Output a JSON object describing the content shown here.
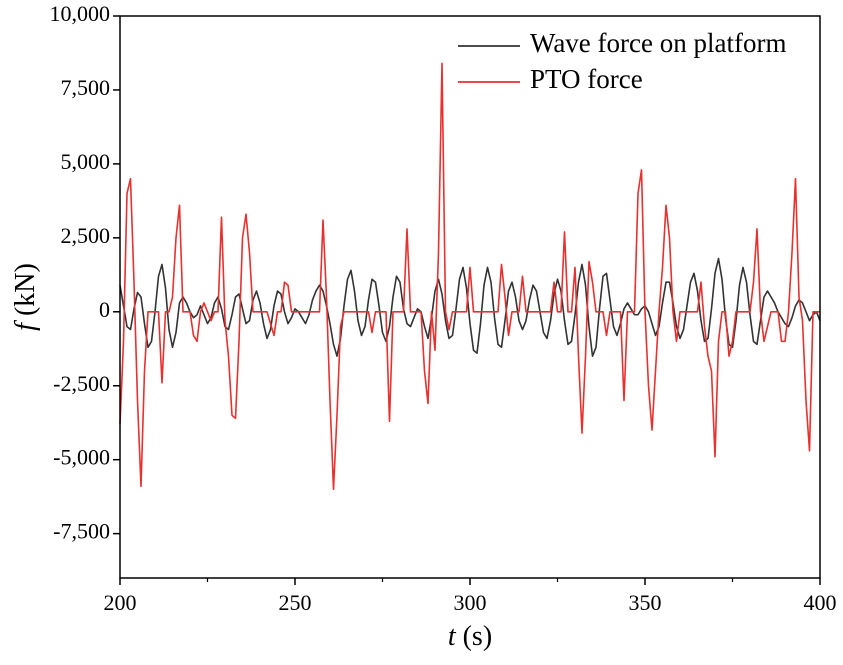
{
  "chart_data": {
    "type": "line",
    "xlabel_var": "t",
    "xlabel_unit": "(s)",
    "ylabel_var": "f",
    "ylabel_unit": "(kN)",
    "xlim": [
      200,
      400
    ],
    "xticks": [
      200,
      250,
      300,
      350,
      400
    ],
    "xminorticks": [
      225,
      275,
      325,
      375
    ],
    "ylim": [
      -9000,
      10000
    ],
    "yticks": [
      {
        "value": -7500,
        "label": "-7,500"
      },
      {
        "value": -5000,
        "label": "-5,000"
      },
      {
        "value": -2500,
        "label": "-2,500"
      },
      0,
      {
        "value": 2500,
        "label": "2,500"
      },
      {
        "value": 5000,
        "label": "5,000"
      },
      {
        "value": 7500,
        "label": "7,500"
      },
      {
        "value": 10000,
        "label": "10,000"
      }
    ],
    "grid": false,
    "legend": "upper right",
    "x": [
      200,
      201,
      202,
      203,
      204,
      205,
      206,
      207,
      208,
      209,
      210,
      211,
      212,
      213,
      214,
      215,
      216,
      217,
      218,
      219,
      220,
      221,
      222,
      223,
      224,
      225,
      226,
      227,
      228,
      229,
      230,
      231,
      232,
      233,
      234,
      235,
      236,
      237,
      238,
      239,
      240,
      241,
      242,
      243,
      244,
      245,
      246,
      247,
      248,
      249,
      250,
      251,
      252,
      253,
      254,
      255,
      256,
      257,
      258,
      259,
      260,
      261,
      262,
      263,
      264,
      265,
      266,
      267,
      268,
      269,
      270,
      271,
      272,
      273,
      274,
      275,
      276,
      277,
      278,
      279,
      280,
      281,
      282,
      283,
      284,
      285,
      286,
      287,
      288,
      289,
      290,
      291,
      292,
      293,
      294,
      295,
      296,
      297,
      298,
      299,
      300,
      301,
      302,
      303,
      304,
      305,
      306,
      307,
      308,
      309,
      310,
      311,
      312,
      313,
      314,
      315,
      316,
      317,
      318,
      319,
      320,
      321,
      322,
      323,
      324,
      325,
      326,
      327,
      328,
      329,
      330,
      331,
      332,
      333,
      334,
      335,
      336,
      337,
      338,
      339,
      340,
      341,
      342,
      343,
      344,
      345,
      346,
      347,
      348,
      349,
      350,
      351,
      352,
      353,
      354,
      355,
      356,
      357,
      358,
      359,
      360,
      361,
      362,
      363,
      364,
      365,
      366,
      367,
      368,
      369,
      370,
      371,
      372,
      373,
      374,
      375,
      376,
      377,
      378,
      379,
      380,
      381,
      382,
      383,
      384,
      385,
      386,
      387,
      388,
      389,
      390,
      391,
      392,
      393,
      394,
      395,
      396,
      397,
      398,
      399,
      400
    ],
    "series": [
      {
        "name": "Wave force on platform",
        "color": "#333333",
        "values": [
          900,
          200,
          -500,
          -600,
          100,
          650,
          500,
          -400,
          -1200,
          -1000,
          0,
          1200,
          1600,
          800,
          -600,
          -1200,
          -700,
          300,
          500,
          300,
          0,
          -200,
          -100,
          200,
          -100,
          -400,
          -200,
          300,
          500,
          100,
          -500,
          -600,
          -100,
          500,
          600,
          100,
          -400,
          -300,
          400,
          700,
          300,
          -400,
          -900,
          -600,
          200,
          700,
          600,
          0,
          -400,
          -200,
          100,
          0,
          -200,
          -400,
          -100,
          400,
          700,
          900,
          700,
          200,
          -400,
          -1100,
          -1500,
          -900,
          200,
          1100,
          1400,
          700,
          -300,
          -800,
          -500,
          400,
          1100,
          1000,
          200,
          -700,
          -1000,
          -500,
          500,
          1200,
          1000,
          100,
          -400,
          -500,
          -200,
          100,
          0,
          -500,
          -900,
          -200,
          700,
          1100,
          600,
          -300,
          -900,
          -800,
          100,
          1100,
          1500,
          800,
          -400,
          -1300,
          -1400,
          -400,
          900,
          1500,
          1000,
          -200,
          -1100,
          -1200,
          -300,
          700,
          1000,
          500,
          -300,
          -600,
          -300,
          400,
          900,
          700,
          0,
          -700,
          -900,
          -300,
          600,
          1100,
          700,
          -300,
          -1100,
          -1000,
          -100,
          1000,
          1600,
          900,
          -500,
          -1500,
          -1200,
          100,
          1200,
          1300,
          400,
          -500,
          -800,
          -400,
          100,
          300,
          100,
          -100,
          -100,
          100,
          200,
          0,
          -400,
          -800,
          -500,
          300,
          1000,
          1000,
          300,
          -500,
          -900,
          -600,
          200,
          1000,
          1300,
          700,
          -300,
          -1000,
          -900,
          100,
          1300,
          1800,
          1100,
          -200,
          -1100,
          -1200,
          -300,
          900,
          1500,
          1000,
          -100,
          -1000,
          -1100,
          -300,
          500,
          700,
          500,
          300,
          0,
          -200,
          -400,
          -500,
          -200,
          200,
          400,
          300,
          0,
          -300,
          -100,
          0,
          -300
        ]
      },
      {
        "name": "PTO force",
        "color": "#e8302e",
        "values": [
          -3800,
          -1000,
          4000,
          4500,
          1000,
          -3000,
          -5900,
          -2000,
          0,
          0,
          0,
          0,
          -2400,
          0,
          0,
          500,
          2500,
          3600,
          0,
          0,
          0,
          -800,
          -1000,
          0,
          300,
          0,
          -300,
          0,
          0,
          3200,
          -300,
          -1500,
          -3500,
          -3600,
          -1000,
          2500,
          3300,
          2000,
          0,
          0,
          0,
          0,
          0,
          -400,
          -800,
          0,
          0,
          1000,
          900,
          0,
          0,
          0,
          0,
          0,
          0,
          0,
          0,
          0,
          3100,
          500,
          -3000,
          -6000,
          -3500,
          -500,
          0,
          0,
          0,
          0,
          0,
          0,
          0,
          0,
          -700,
          0,
          0,
          0,
          0,
          -3700,
          0,
          0,
          0,
          0,
          2800,
          0,
          0,
          0,
          0,
          -2000,
          -3100,
          0,
          -1300,
          2000,
          8400,
          0,
          -600,
          0,
          0,
          0,
          0,
          0,
          1500,
          0,
          0,
          0,
          0,
          0,
          0,
          0,
          0,
          1600,
          500,
          -800,
          0,
          0,
          0,
          1200,
          0,
          0,
          0,
          0,
          0,
          0,
          0,
          0,
          1000,
          0,
          0,
          2700,
          0,
          0,
          1500,
          -1500,
          -4100,
          -1500,
          1700,
          1000,
          0,
          0,
          0,
          -800,
          0,
          0,
          0,
          0,
          -3000,
          0,
          0,
          0,
          4000,
          4800,
          0,
          -2500,
          -4000,
          -2000,
          0,
          1500,
          3600,
          2500,
          0,
          -1000,
          0,
          0,
          0,
          0,
          0,
          0,
          1000,
          -500,
          -1500,
          -2000,
          -4900,
          -1000,
          0,
          0,
          -1500,
          -1000,
          0,
          0,
          0,
          0,
          0,
          1000,
          2800,
          0,
          -1000,
          -500,
          0,
          0,
          0,
          -1000,
          -1000,
          0,
          2000,
          4500,
          500,
          -300,
          -3000,
          -4700,
          0,
          0,
          0
        ]
      }
    ]
  }
}
